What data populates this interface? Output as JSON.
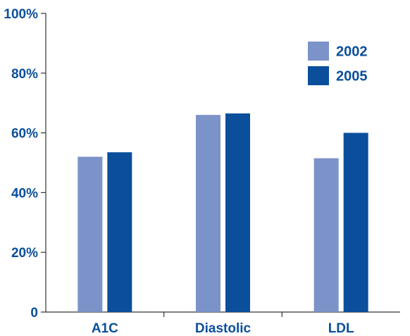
{
  "chart_data": {
    "type": "bar",
    "title": "",
    "xlabel": "",
    "ylabel": "",
    "categories": [
      "A1C",
      "Diastolic",
      "LDL"
    ],
    "series": [
      {
        "name": "2002",
        "color": "#7b93c8",
        "values": [
          52,
          66,
          51.5
        ]
      },
      {
        "name": "2005",
        "color": "#0b4f9c",
        "values": [
          53.5,
          66.5,
          60
        ]
      }
    ],
    "ylim": [
      0,
      100
    ],
    "yticks": [
      0,
      20,
      40,
      60,
      80,
      100
    ],
    "ytick_labels": [
      "0",
      "20%",
      "40%",
      "60%",
      "80%",
      "100%"
    ],
    "grid": false,
    "legend_position": "top-right",
    "axis_color": "#333333",
    "text_color": "#0b4f9c"
  }
}
